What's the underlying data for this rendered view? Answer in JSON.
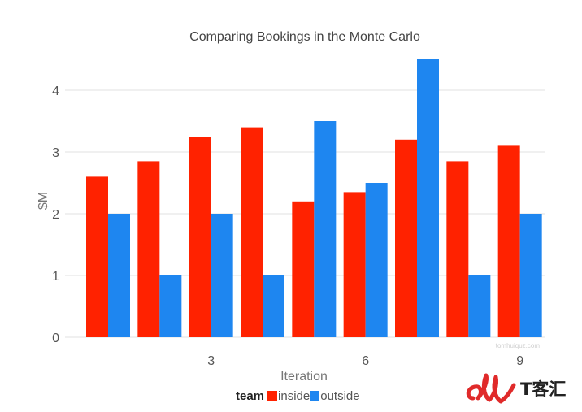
{
  "chart_data": {
    "type": "bar",
    "title": "Comparing Bookings in the Monte Carlo",
    "xlabel": "Iteration",
    "ylabel": "$M",
    "ylim": [
      0,
      4.5
    ],
    "yticks": [
      0,
      1,
      2,
      3,
      4
    ],
    "xticks": [
      {
        "at": 3,
        "label": "3"
      },
      {
        "at": 6,
        "label": "6"
      },
      {
        "at": 9,
        "label": "9"
      }
    ],
    "categories": [
      1,
      2,
      3,
      4,
      5,
      6,
      7,
      8,
      9
    ],
    "grid": true,
    "legend_title": "team",
    "legend_position": "bottom",
    "series": [
      {
        "name": "inside",
        "color": "#ff2200",
        "values": [
          2.6,
          2.85,
          3.25,
          3.4,
          2.2,
          2.35,
          3.2,
          2.85,
          3.1
        ]
      },
      {
        "name": "outside",
        "color": "#1e86f0",
        "values": [
          2.0,
          1.0,
          2.0,
          1.0,
          3.5,
          2.5,
          4.5,
          1.0,
          2.0
        ]
      }
    ]
  },
  "watermark": {
    "site": "tomhuiquz.com",
    "brand_text": "T客汇"
  }
}
